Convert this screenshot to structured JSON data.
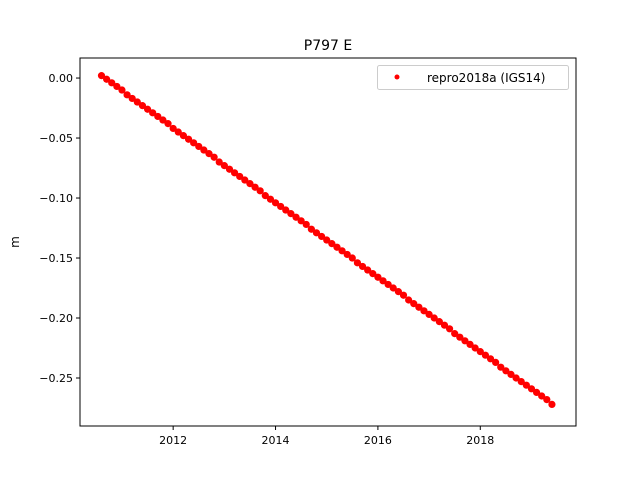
{
  "chart_data": {
    "type": "scatter",
    "title": "P797 E",
    "xlabel": "",
    "ylabel": "m",
    "xlim": [
      2010.18,
      2019.87
    ],
    "ylim": [
      -0.29,
      0.0167
    ],
    "xticks": [
      2012,
      2014,
      2016,
      2018
    ],
    "xtick_labels": [
      "2012",
      "2014",
      "2016",
      "2018"
    ],
    "yticks": [
      0.0,
      -0.05,
      -0.1,
      -0.15,
      -0.2,
      -0.25
    ],
    "ytick_labels": [
      "0.00",
      "−0.05",
      "−0.10",
      "−0.15",
      "−0.20",
      "−0.25"
    ],
    "grid": false,
    "legend_position": "top-right",
    "series": [
      {
        "name": "repro2018a (IGS14)",
        "color": "#ff0000",
        "marker": "dot",
        "x": [
          2010.6,
          2010.7,
          2010.8,
          2010.9,
          2011.0,
          2011.1,
          2011.2,
          2011.3,
          2011.4,
          2011.5,
          2011.6,
          2011.7,
          2011.8,
          2011.9,
          2012.0,
          2012.1,
          2012.2,
          2012.3,
          2012.4,
          2012.5,
          2012.6,
          2012.7,
          2012.8,
          2012.9,
          2013.0,
          2013.1,
          2013.2,
          2013.3,
          2013.4,
          2013.5,
          2013.6,
          2013.7,
          2013.8,
          2013.9,
          2014.0,
          2014.1,
          2014.2,
          2014.3,
          2014.4,
          2014.5,
          2014.6,
          2014.7,
          2014.8,
          2014.9,
          2015.0,
          2015.1,
          2015.2,
          2015.3,
          2015.4,
          2015.5,
          2015.6,
          2015.7,
          2015.8,
          2015.9,
          2016.0,
          2016.1,
          2016.2,
          2016.3,
          2016.4,
          2016.5,
          2016.6,
          2016.7,
          2016.8,
          2016.9,
          2017.0,
          2017.1,
          2017.2,
          2017.3,
          2017.4,
          2017.5,
          2017.6,
          2017.7,
          2017.8,
          2017.9,
          2018.0,
          2018.1,
          2018.2,
          2018.3,
          2018.4,
          2018.5,
          2018.6,
          2018.7,
          2018.8,
          2018.9,
          2019.0,
          2019.1,
          2019.2,
          2019.3,
          2019.4
        ],
        "y": [
          0.002,
          -0.001,
          -0.004,
          -0.007,
          -0.01,
          -0.014,
          -0.017,
          -0.02,
          -0.023,
          -0.026,
          -0.029,
          -0.032,
          -0.035,
          -0.038,
          -0.042,
          -0.045,
          -0.048,
          -0.051,
          -0.054,
          -0.057,
          -0.06,
          -0.063,
          -0.066,
          -0.07,
          -0.073,
          -0.076,
          -0.079,
          -0.082,
          -0.085,
          -0.088,
          -0.091,
          -0.094,
          -0.098,
          -0.101,
          -0.104,
          -0.107,
          -0.11,
          -0.113,
          -0.116,
          -0.119,
          -0.122,
          -0.126,
          -0.129,
          -0.132,
          -0.135,
          -0.138,
          -0.141,
          -0.144,
          -0.147,
          -0.15,
          -0.154,
          -0.157,
          -0.16,
          -0.163,
          -0.166,
          -0.169,
          -0.172,
          -0.175,
          -0.178,
          -0.181,
          -0.185,
          -0.188,
          -0.191,
          -0.194,
          -0.197,
          -0.2,
          -0.203,
          -0.206,
          -0.209,
          -0.213,
          -0.216,
          -0.219,
          -0.222,
          -0.225,
          -0.228,
          -0.231,
          -0.234,
          -0.237,
          -0.241,
          -0.244,
          -0.247,
          -0.25,
          -0.253,
          -0.256,
          -0.259,
          -0.262,
          -0.265,
          -0.268,
          -0.272
        ]
      }
    ]
  }
}
